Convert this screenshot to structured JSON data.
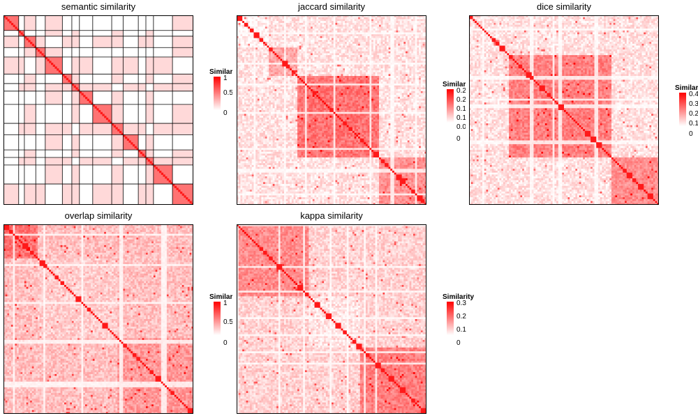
{
  "chart_data": [
    {
      "type": "heatmap",
      "title": "semantic similarity",
      "style": "semantic",
      "legend": {
        "title": "Similarity",
        "ticks": [
          "1",
          "0.5",
          "0"
        ],
        "range": [
          0,
          1
        ]
      },
      "block_boundaries": [
        0,
        8,
        11,
        17,
        22,
        31,
        36,
        40,
        47,
        57,
        63,
        71,
        75,
        79,
        89,
        100
      ],
      "rows": 100
    },
    {
      "type": "heatmap",
      "title": "jaccard similarity",
      "style": "jaccard",
      "legend": {
        "title": "Similarity",
        "ticks": [
          "0.2",
          "0.2",
          "0.1",
          "0.1",
          "0.0",
          "0"
        ],
        "range": [
          0,
          0.25
        ]
      },
      "rows": 100
    },
    {
      "type": "heatmap",
      "title": "dice similarity",
      "style": "dice",
      "legend": {
        "title": "Similarity",
        "ticks": [
          "0.4",
          "0.3",
          "0.2",
          "0.1",
          "0"
        ],
        "range": [
          0,
          0.4
        ]
      },
      "rows": 100
    },
    {
      "type": "heatmap",
      "title": "overlap similarity",
      "style": "overlap",
      "legend": {
        "title": "Similarity",
        "ticks": [
          "1",
          "0.5",
          "0"
        ],
        "range": [
          0,
          1
        ]
      },
      "rows": 100
    },
    {
      "type": "heatmap",
      "title": "kappa similarity",
      "style": "kappa",
      "legend": {
        "title": "Similarity",
        "ticks": [
          "0.3",
          "0.2",
          "0.1",
          "0"
        ],
        "range": [
          0,
          0.3
        ]
      },
      "rows": 100
    }
  ],
  "colors": {
    "high": "#ff0000",
    "low": "#ffffff",
    "border": "#000000"
  }
}
